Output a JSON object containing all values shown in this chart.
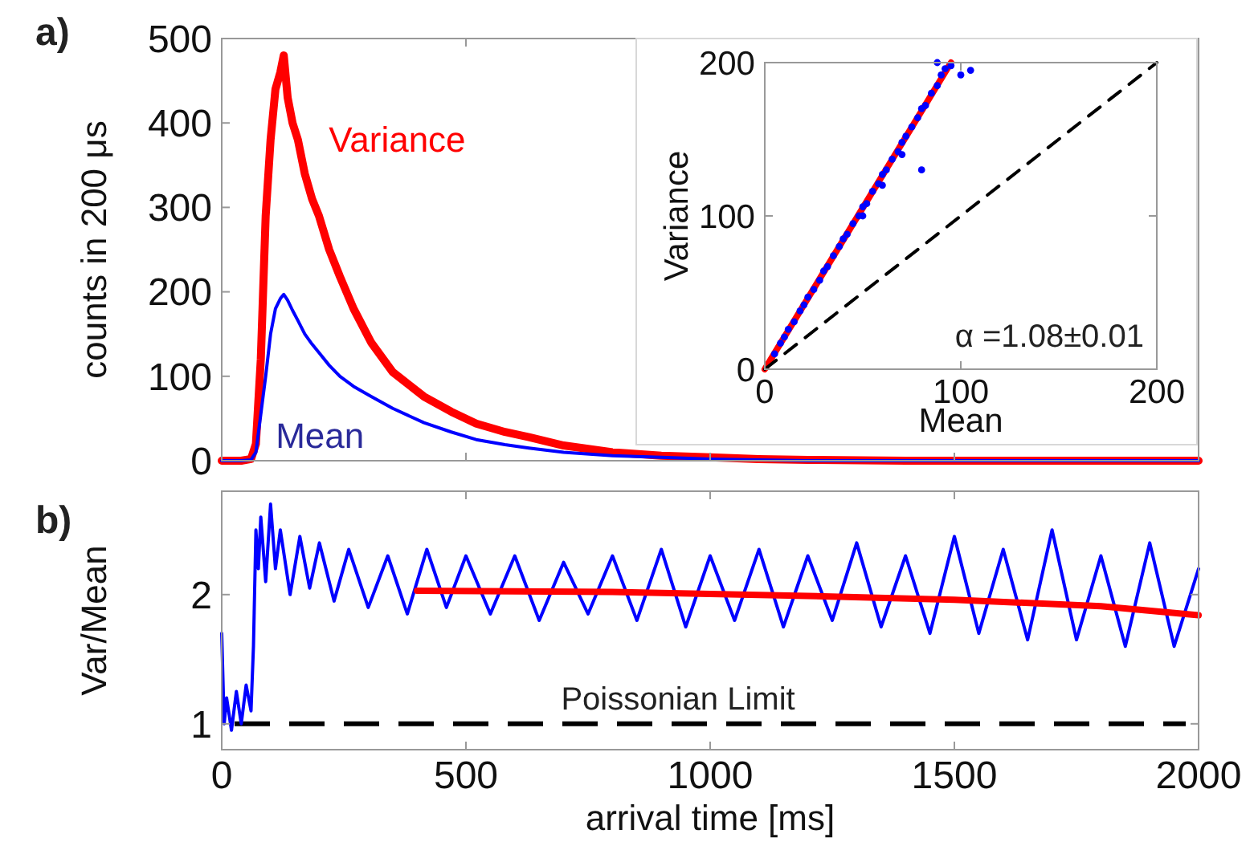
{
  "chart_data": [
    {
      "type": "line",
      "title": "a)",
      "ylabel": "counts in 200 μs",
      "xlim": [
        0,
        2000
      ],
      "xticks": [
        0,
        500,
        1000,
        1500,
        2000
      ],
      "ylim": [
        0,
        500
      ],
      "yticks": [
        0,
        100,
        200,
        300,
        400,
        500
      ],
      "tick_labels": "y",
      "grid": false,
      "series": [
        {
          "name": "Variance",
          "color": "#ff0000",
          "x": [
            0,
            40,
            60,
            70,
            80,
            90,
            100,
            110,
            120,
            127,
            135,
            145,
            156,
            170,
            185,
            199,
            220,
            242,
            270,
            306,
            350,
            414,
            470,
            521,
            580,
            629,
            700,
            800,
            900,
            1000,
            1100,
            1200,
            1400,
            1600,
            1800,
            2000
          ],
          "values": [
            0,
            0,
            2,
            20,
            120,
            290,
            380,
            440,
            460,
            480,
            430,
            400,
            380,
            340,
            310,
            290,
            250,
            218,
            180,
            140,
            105,
            76,
            58,
            44,
            34,
            28,
            18,
            10,
            6,
            4,
            2,
            1,
            0,
            0,
            0,
            0
          ]
        },
        {
          "name": "Mean",
          "color": "#0000ff",
          "x": [
            0,
            40,
            60,
            70,
            80,
            90,
            100,
            110,
            120,
            127,
            135,
            145,
            156,
            170,
            185,
            199,
            220,
            242,
            270,
            306,
            350,
            414,
            470,
            521,
            580,
            629,
            700,
            800,
            900,
            1000,
            1100,
            1200,
            1400,
            1600,
            1800,
            2000
          ],
          "values": [
            0,
            0,
            1,
            10,
            55,
            100,
            150,
            180,
            192,
            197,
            190,
            178,
            166,
            150,
            138,
            128,
            113,
            100,
            88,
            76,
            62,
            45,
            34,
            25,
            19,
            15,
            10,
            6,
            4,
            2,
            1,
            0,
            0,
            0,
            0,
            0
          ]
        }
      ]
    },
    {
      "type": "scatter",
      "xlabel": "Mean",
      "ylabel": "Variance",
      "xlim": [
        0,
        200
      ],
      "xticks": [
        0,
        100,
        200
      ],
      "ylim": [
        0,
        200
      ],
      "yticks": [
        0,
        100,
        200
      ],
      "grid": false,
      "annotations": [
        "α =1.08±0.01"
      ],
      "series": [
        {
          "type": "scatter",
          "color": "#0000ff",
          "x": [
            5,
            8,
            10,
            12,
            15,
            18,
            20,
            22,
            25,
            28,
            30,
            32,
            35,
            38,
            40,
            42,
            45,
            48,
            50,
            52,
            55,
            58,
            60,
            62,
            65,
            68,
            70,
            72,
            75,
            78,
            80,
            82,
            85,
            88,
            90,
            92,
            95,
            100,
            105,
            80,
            88,
            60,
            50,
            70
          ],
          "values": [
            10,
            17,
            21,
            26,
            31,
            38,
            42,
            47,
            52,
            58,
            64,
            67,
            74,
            80,
            85,
            88,
            95,
            100,
            106,
            108,
            116,
            121,
            127,
            130,
            137,
            142,
            148,
            152,
            158,
            164,
            170,
            172,
            180,
            185,
            192,
            196,
            198,
            192,
            195,
            130,
            200,
            120,
            100,
            140
          ]
        },
        {
          "type": "line",
          "color": "#ff0000",
          "x": [
            0,
            95
          ],
          "values": [
            0,
            200
          ]
        },
        {
          "type": "line",
          "color": "#000000",
          "line_style": "dashed",
          "x": [
            0,
            200
          ],
          "values": [
            0,
            200
          ]
        }
      ]
    },
    {
      "type": "line",
      "title": "b)",
      "xlabel": "arrival time [ms]",
      "ylabel": "Var/Mean",
      "xlim": [
        0,
        2000
      ],
      "xticks": [
        0,
        500,
        1000,
        1500,
        2000
      ],
      "ylim": [
        0.8,
        2.8
      ],
      "yticks": [
        1,
        2
      ],
      "grid": false,
      "ref_lines": [
        {
          "axis": "y",
          "value": 1,
          "label": "Poissonian Limit",
          "color": "#000000",
          "line_style": "dashed"
        }
      ],
      "series": [
        {
          "color": "#0000ff",
          "x": [
            0,
            5,
            10,
            20,
            30,
            40,
            50,
            60,
            65,
            70,
            75,
            80,
            90,
            100,
            110,
            120,
            140,
            160,
            180,
            200,
            230,
            260,
            300,
            340,
            380,
            420,
            460,
            500,
            550,
            600,
            650,
            700,
            750,
            800,
            850,
            900,
            950,
            1000,
            1050,
            1100,
            1150,
            1200,
            1250,
            1300,
            1350,
            1400,
            1450,
            1500,
            1550,
            1600,
            1650,
            1700,
            1750,
            1800,
            1850,
            1900,
            1950,
            2000
          ],
          "values": [
            1.7,
            1.0,
            1.2,
            0.95,
            1.25,
            1.0,
            1.3,
            1.1,
            1.6,
            2.5,
            2.2,
            2.6,
            2.1,
            2.7,
            2.2,
            2.5,
            2.0,
            2.45,
            2.05,
            2.4,
            1.95,
            2.35,
            1.9,
            2.3,
            1.85,
            2.35,
            1.9,
            2.3,
            1.85,
            2.3,
            1.8,
            2.25,
            1.85,
            2.3,
            1.8,
            2.35,
            1.75,
            2.3,
            1.8,
            2.35,
            1.75,
            2.3,
            1.8,
            2.4,
            1.75,
            2.3,
            1.7,
            2.45,
            1.7,
            2.35,
            1.65,
            2.5,
            1.65,
            2.3,
            1.6,
            2.4,
            1.6,
            2.2
          ]
        },
        {
          "type": "line",
          "color": "#ff0000",
          "x": [
            400,
            800,
            1200,
            1500,
            1800,
            2000
          ],
          "values": [
            2.03,
            2.02,
            1.99,
            1.96,
            1.91,
            1.84
          ]
        }
      ]
    }
  ]
}
